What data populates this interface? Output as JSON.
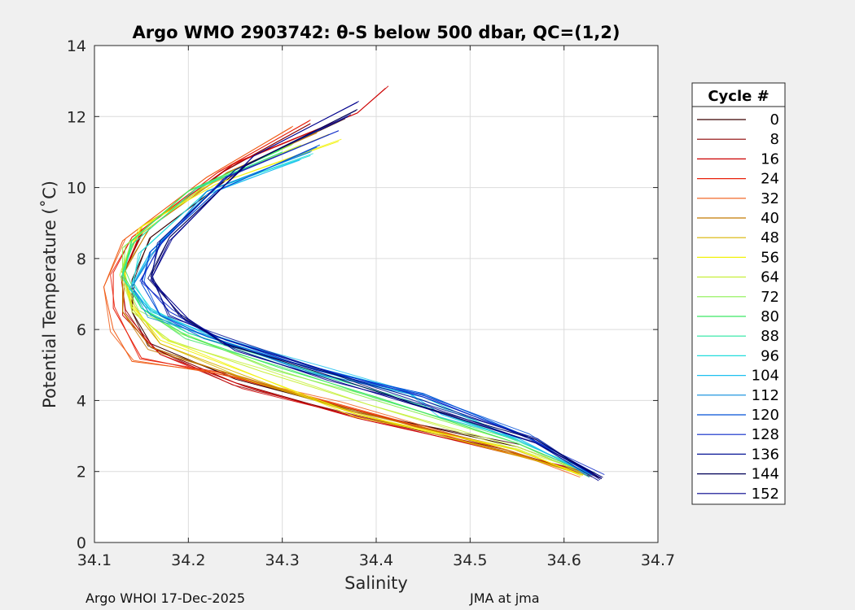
{
  "chart_data": {
    "type": "line",
    "title": "Argo WMO 2903742: θ-S below 500 dbar,  QC=(1,2)",
    "xlabel": "Salinity",
    "ylabel": "Potential Temperature (˚C)",
    "xlim": [
      34.1,
      34.7
    ],
    "ylim": [
      0,
      14
    ],
    "xticks": [
      "34.1",
      "34.2",
      "34.3",
      "34.4",
      "34.5",
      "34.6",
      "34.7"
    ],
    "yticks": [
      "0",
      "2",
      "4",
      "6",
      "8",
      "10",
      "12",
      "14"
    ],
    "grid": true,
    "legend": {
      "title": "Cycle #",
      "placement": "right-outside",
      "entries": [
        {
          "label": "0",
          "color": "#3a0000"
        },
        {
          "label": "8",
          "color": "#8c0000"
        },
        {
          "label": "16",
          "color": "#cc0000"
        },
        {
          "label": "24",
          "color": "#e8200a"
        },
        {
          "label": "32",
          "color": "#f05a14"
        },
        {
          "label": "40",
          "color": "#c47a00"
        },
        {
          "label": "48",
          "color": "#d8b400"
        },
        {
          "label": "56",
          "color": "#f2f20a"
        },
        {
          "label": "64",
          "color": "#c8f03c"
        },
        {
          "label": "72",
          "color": "#8cf050"
        },
        {
          "label": "80",
          "color": "#3ce664"
        },
        {
          "label": "88",
          "color": "#28e6a0"
        },
        {
          "label": "96",
          "color": "#22dcdc"
        },
        {
          "label": "104",
          "color": "#1ec0f0"
        },
        {
          "label": "112",
          "color": "#0a8cdc"
        },
        {
          "label": "120",
          "color": "#0050d8"
        },
        {
          "label": "128",
          "color": "#0a28c8"
        },
        {
          "label": "136",
          "color": "#061496"
        },
        {
          "label": "144",
          "color": "#000058"
        },
        {
          "label": "152",
          "color": "#00008c"
        }
      ]
    },
    "series": [
      {
        "name": "0",
        "color": "#3a0000",
        "x": [
          34.37,
          34.26,
          34.16,
          34.14,
          34.14,
          34.16,
          34.25,
          34.38,
          34.55,
          34.64
        ],
        "y": [
          12.0,
          10.6,
          8.6,
          7.4,
          6.5,
          5.6,
          4.6,
          3.7,
          2.7,
          1.8
        ]
      },
      {
        "name": "8",
        "color": "#8c0000",
        "x": [
          34.33,
          34.24,
          34.15,
          34.13,
          34.13,
          34.16,
          34.25,
          34.37,
          34.54,
          34.63
        ],
        "y": [
          11.8,
          10.5,
          8.7,
          7.5,
          6.5,
          5.5,
          4.5,
          3.6,
          2.6,
          1.85
        ]
      },
      {
        "name": "16",
        "color": "#cc0000",
        "x": [
          34.41,
          34.38,
          34.25,
          34.15,
          34.13,
          34.13,
          34.17,
          34.26,
          34.38,
          34.54,
          34.63
        ],
        "y": [
          12.8,
          12.1,
          10.7,
          8.8,
          7.5,
          6.4,
          5.3,
          4.4,
          3.5,
          2.55,
          1.9
        ]
      },
      {
        "name": "24",
        "color": "#e8200a",
        "x": [
          34.33,
          34.23,
          34.14,
          34.12,
          34.12,
          34.15,
          34.24,
          34.37,
          34.54,
          34.62
        ],
        "y": [
          11.9,
          10.4,
          8.6,
          7.6,
          6.6,
          5.2,
          4.7,
          3.8,
          2.6,
          1.9
        ]
      },
      {
        "name": "32",
        "color": "#f05a14",
        "x": [
          34.31,
          34.22,
          34.13,
          34.11,
          34.12,
          34.14,
          34.23,
          34.36,
          34.54,
          34.62
        ],
        "y": [
          11.7,
          10.3,
          8.5,
          7.2,
          6.0,
          5.1,
          4.8,
          3.9,
          2.6,
          1.9
        ]
      },
      {
        "name": "40",
        "color": "#c47a00",
        "x": [
          34.34,
          34.24,
          34.16,
          34.13,
          34.13,
          34.16,
          34.26,
          34.38,
          34.54,
          34.62
        ],
        "y": [
          11.6,
          10.4,
          8.9,
          7.6,
          6.5,
          5.5,
          4.6,
          3.7,
          2.6,
          1.9
        ]
      },
      {
        "name": "48",
        "color": "#d8b400",
        "x": [
          34.35,
          34.23,
          34.15,
          34.13,
          34.14,
          34.17,
          34.27,
          34.38,
          34.54,
          34.62
        ],
        "y": [
          11.5,
          10.2,
          8.9,
          7.7,
          6.6,
          5.6,
          4.6,
          3.6,
          2.55,
          1.9
        ]
      },
      {
        "name": "56",
        "color": "#f2f20a",
        "x": [
          34.36,
          34.23,
          34.15,
          34.13,
          34.14,
          34.17,
          34.28,
          34.38,
          34.55,
          34.62
        ],
        "y": [
          11.3,
          10.1,
          8.9,
          7.8,
          6.7,
          5.7,
          4.6,
          3.6,
          2.6,
          1.9
        ]
      },
      {
        "name": "64",
        "color": "#c8f03c",
        "x": [
          34.32,
          34.22,
          34.14,
          34.13,
          34.14,
          34.18,
          34.28,
          34.39,
          34.55,
          34.63
        ],
        "y": [
          11.2,
          10.1,
          8.5,
          7.6,
          6.5,
          5.7,
          4.8,
          3.9,
          2.7,
          1.9
        ]
      },
      {
        "name": "72",
        "color": "#8cf050",
        "x": [
          34.31,
          34.2,
          34.13,
          34.13,
          34.15,
          34.19,
          34.29,
          34.4,
          34.55,
          34.63
        ],
        "y": [
          11.2,
          9.9,
          8.3,
          7.5,
          6.6,
          5.9,
          4.9,
          4.0,
          2.8,
          1.9
        ]
      },
      {
        "name": "80",
        "color": "#3ce664",
        "x": [
          34.3,
          34.2,
          34.14,
          34.13,
          34.15,
          34.2,
          34.3,
          34.4,
          34.55,
          34.63
        ],
        "y": [
          11.1,
          9.9,
          8.5,
          7.6,
          6.6,
          5.8,
          4.9,
          4.1,
          2.8,
          1.9
        ]
      },
      {
        "name": "88",
        "color": "#28e6a0",
        "x": [
          34.3,
          34.21,
          34.14,
          34.13,
          34.15,
          34.2,
          34.31,
          34.42,
          34.55,
          34.63
        ],
        "y": [
          11.0,
          10.0,
          8.4,
          7.5,
          6.6,
          5.9,
          5.0,
          4.1,
          2.9,
          1.9
        ]
      },
      {
        "name": "96",
        "color": "#22dcdc",
        "x": [
          34.33,
          34.22,
          34.15,
          34.14,
          34.16,
          34.21,
          34.33,
          34.45,
          34.55,
          34.63
        ],
        "y": [
          10.9,
          9.9,
          8.2,
          7.3,
          6.6,
          5.9,
          4.9,
          4.1,
          2.9,
          1.9
        ]
      },
      {
        "name": "104",
        "color": "#1ec0f0",
        "x": [
          34.32,
          34.22,
          34.16,
          34.14,
          34.16,
          34.22,
          34.34,
          34.43,
          34.47,
          34.55,
          34.63
        ],
        "y": [
          10.8,
          9.8,
          8.2,
          7.2,
          6.5,
          5.9,
          4.9,
          4.3,
          3.6,
          2.9,
          1.9
        ]
      },
      {
        "name": "112",
        "color": "#0a8cdc",
        "x": [
          34.33,
          34.22,
          34.16,
          34.14,
          34.16,
          34.22,
          34.33,
          34.45,
          34.56,
          34.63
        ],
        "y": [
          11.0,
          9.9,
          8.1,
          7.2,
          6.4,
          5.8,
          4.8,
          4.1,
          3.0,
          1.9
        ]
      },
      {
        "name": "120",
        "color": "#0050d8",
        "x": [
          34.34,
          34.23,
          34.16,
          34.15,
          34.17,
          34.22,
          34.33,
          34.45,
          34.56,
          34.63
        ],
        "y": [
          11.2,
          9.9,
          8.2,
          7.3,
          6.4,
          5.8,
          4.9,
          4.2,
          3.0,
          1.9
        ]
      },
      {
        "name": "128",
        "color": "#0a28c8",
        "x": [
          34.36,
          34.24,
          34.17,
          34.15,
          34.18,
          34.23,
          34.34,
          34.45,
          34.56,
          34.64
        ],
        "y": [
          11.6,
          10.3,
          8.4,
          7.4,
          6.5,
          5.8,
          4.9,
          4.1,
          3.0,
          1.85
        ]
      },
      {
        "name": "136",
        "color": "#061496",
        "x": [
          34.37,
          34.25,
          34.17,
          34.16,
          34.18,
          34.24,
          34.35,
          34.45,
          34.57,
          34.64
        ],
        "y": [
          12.0,
          10.5,
          8.5,
          7.5,
          6.4,
          5.7,
          4.8,
          4.0,
          2.9,
          1.8
        ]
      },
      {
        "name": "144",
        "color": "#000058",
        "x": [
          34.38,
          34.26,
          34.18,
          34.16,
          34.19,
          34.24,
          34.35,
          34.44,
          34.57,
          34.64
        ],
        "y": [
          12.2,
          10.6,
          8.6,
          7.5,
          6.4,
          5.6,
          4.7,
          3.9,
          2.9,
          1.8
        ]
      },
      {
        "name": "152",
        "color": "#00008c",
        "x": [
          34.38,
          34.27,
          34.18,
          34.16,
          34.2,
          34.25,
          34.35,
          34.45,
          34.57,
          34.64
        ],
        "y": [
          12.4,
          10.9,
          8.5,
          7.4,
          6.3,
          5.4,
          4.6,
          3.8,
          2.8,
          1.8
        ]
      }
    ]
  },
  "footer": {
    "left": "Argo WHOI 17-Dec-2025",
    "right": "JMA at jma"
  }
}
